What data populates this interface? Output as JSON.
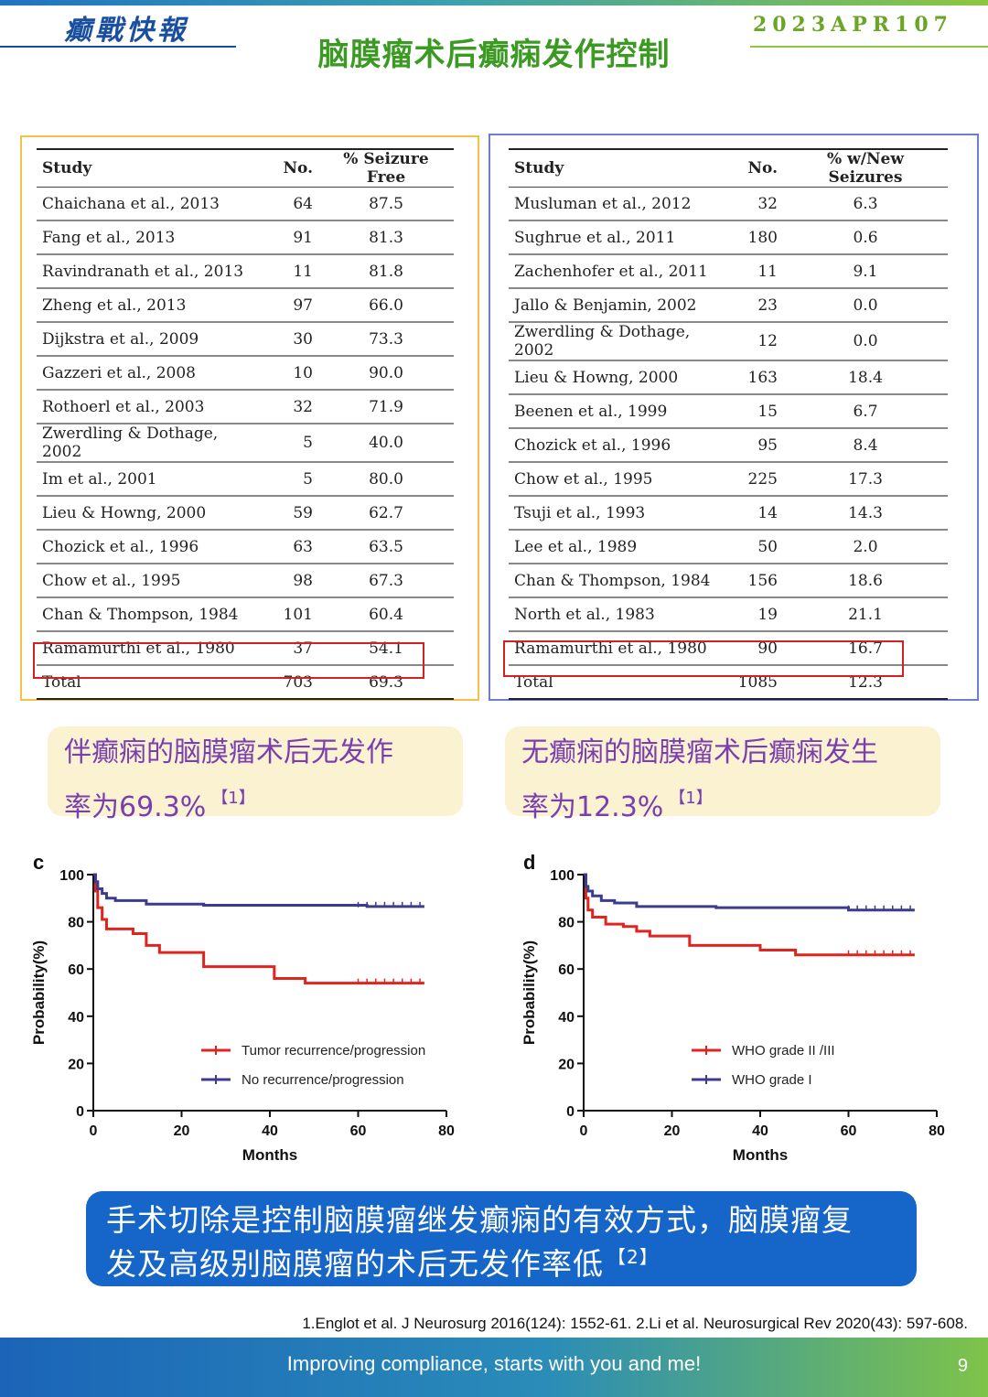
{
  "header": {
    "brand": "癫戰快報",
    "issue": "2023APR107",
    "title": "脑膜瘤术后癫痫发作控制"
  },
  "tables": {
    "left": {
      "headers": [
        "Study",
        "No.",
        "% Seizure Free"
      ],
      "rows": [
        [
          "Chaichana et al., 2013",
          "64",
          "87.5"
        ],
        [
          "Fang et al., 2013",
          "91",
          "81.3"
        ],
        [
          "Ravindranath et al., 2013",
          "11",
          "81.8"
        ],
        [
          "Zheng et al., 2013",
          "97",
          "66.0"
        ],
        [
          "Dijkstra et al., 2009",
          "30",
          "73.3"
        ],
        [
          "Gazzeri et al., 2008",
          "10",
          "90.0"
        ],
        [
          "Rothoerl et al., 2003",
          "32",
          "71.9"
        ],
        [
          "Zwerdling & Dothage, 2002",
          "5",
          "40.0"
        ],
        [
          "Im et al., 2001",
          "5",
          "80.0"
        ],
        [
          "Lieu & Howng, 2000",
          "59",
          "62.7"
        ],
        [
          "Chozick et al., 1996",
          "63",
          "63.5"
        ],
        [
          "Chow et al., 1995",
          "98",
          "67.3"
        ],
        [
          "Chan & Thompson, 1984",
          "101",
          "60.4"
        ],
        [
          "Ramamurthi et al., 1980",
          "37",
          "54.1"
        ]
      ],
      "total": [
        "Total",
        "703",
        "69.3"
      ]
    },
    "right": {
      "headers": [
        "Study",
        "No.",
        "% w/New Seizures"
      ],
      "rows": [
        [
          "Musluman et al., 2012",
          "32",
          "6.3"
        ],
        [
          "Sughrue et al., 2011",
          "180",
          "0.6"
        ],
        [
          "Zachenhofer et al., 2011",
          "11",
          "9.1"
        ],
        [
          "Jallo & Benjamin, 2002",
          "23",
          "0.0"
        ],
        [
          "Zwerdling & Dothage, 2002",
          "12",
          "0.0"
        ],
        [
          "Lieu & Howng, 2000",
          "163",
          "18.4"
        ],
        [
          "Beenen et al., 1999",
          "15",
          "6.7"
        ],
        [
          "Chozick et al., 1996",
          "95",
          "8.4"
        ],
        [
          "Chow et al., 1995",
          "225",
          "17.3"
        ],
        [
          "Tsuji et al., 1993",
          "14",
          "14.3"
        ],
        [
          "Lee et al., 1989",
          "50",
          "2.0"
        ],
        [
          "Chan & Thompson, 1984",
          "156",
          "18.6"
        ],
        [
          "North et al., 1983",
          "19",
          "21.1"
        ],
        [
          "Ramamurthi et al., 1980",
          "90",
          "16.7"
        ]
      ],
      "total": [
        "Total",
        "1085",
        "12.3"
      ]
    }
  },
  "callouts": {
    "left": {
      "line1": "伴癫痫的脑膜瘤术后无发作",
      "line2": "率为69.3%",
      "ref": "【1】"
    },
    "right": {
      "line1": "无癫痫的脑膜瘤术后癫痫发生",
      "line2": "率为12.3%",
      "ref": "【1】"
    }
  },
  "chart_data": [
    {
      "type": "line",
      "panel": "c",
      "xlabel": "Months",
      "ylabel": "Probability(%)",
      "xlim": [
        0,
        80
      ],
      "ylim": [
        0,
        100
      ],
      "xticks": [
        0,
        20,
        40,
        60,
        80
      ],
      "yticks": [
        0,
        20,
        40,
        60,
        80,
        100
      ],
      "step": true,
      "legend_position": "bottom-right",
      "series": [
        {
          "name": "Tumor recurrence/progression",
          "color": "#e0241f",
          "x": [
            0,
            0.5,
            1,
            2,
            3,
            8,
            9,
            12,
            15,
            24,
            25,
            40,
            41,
            48,
            75
          ],
          "y": [
            100,
            93,
            86,
            81,
            77,
            77,
            75,
            70,
            67,
            67,
            61,
            61,
            56,
            54,
            54
          ]
        },
        {
          "name": "No recurrence/progression",
          "color": "#3c3c8c",
          "x": [
            0,
            0.5,
            1,
            2,
            3,
            5,
            12,
            25,
            60,
            62,
            75
          ],
          "y": [
            100,
            97,
            94,
            92,
            90,
            89,
            87.5,
            87,
            87,
            86.5,
            86.5
          ]
        }
      ]
    },
    {
      "type": "line",
      "panel": "d",
      "xlabel": "Months",
      "ylabel": "Probability(%)",
      "xlim": [
        0,
        80
      ],
      "ylim": [
        0,
        100
      ],
      "xticks": [
        0,
        20,
        40,
        60,
        80
      ],
      "yticks": [
        0,
        20,
        40,
        60,
        80,
        100
      ],
      "step": true,
      "legend_position": "bottom-right",
      "series": [
        {
          "name": "WHO grade II /III",
          "color": "#e0241f",
          "x": [
            0,
            0.5,
            1,
            2,
            5,
            9,
            12,
            15,
            24,
            40,
            48,
            75
          ],
          "y": [
            100,
            90,
            85,
            82,
            79,
            78,
            76,
            74,
            70,
            68,
            66,
            66
          ]
        },
        {
          "name": "WHO grade I",
          "color": "#3c3c8c",
          "x": [
            0,
            0.5,
            1,
            2,
            4,
            7,
            12,
            30,
            60,
            75
          ],
          "y": [
            100,
            95,
            93,
            91,
            89,
            88,
            86.5,
            86,
            85,
            85
          ]
        }
      ]
    }
  ],
  "conclusion": {
    "line1": "手术切除是控制脑膜瘤继发癫痫的有效方式，脑膜瘤复",
    "line2": "发及高级别脑膜瘤的术后无发作率低",
    "ref": "【2】"
  },
  "references": "1.Englot et al. J Neurosurg 2016(124): 1552-61.  2.Li et al.  Neurosurgical Rev 2020(43): 597-608.",
  "footer": {
    "slogan": "Improving compliance, starts with you and me!",
    "page": "9"
  },
  "colors": {
    "title_green": "#3a9a22",
    "callout_bg": "#fbf2d2",
    "callout_text": "#7a3fae",
    "conclusion_bg": "#1665c8",
    "total_highlight": "#d42020"
  }
}
